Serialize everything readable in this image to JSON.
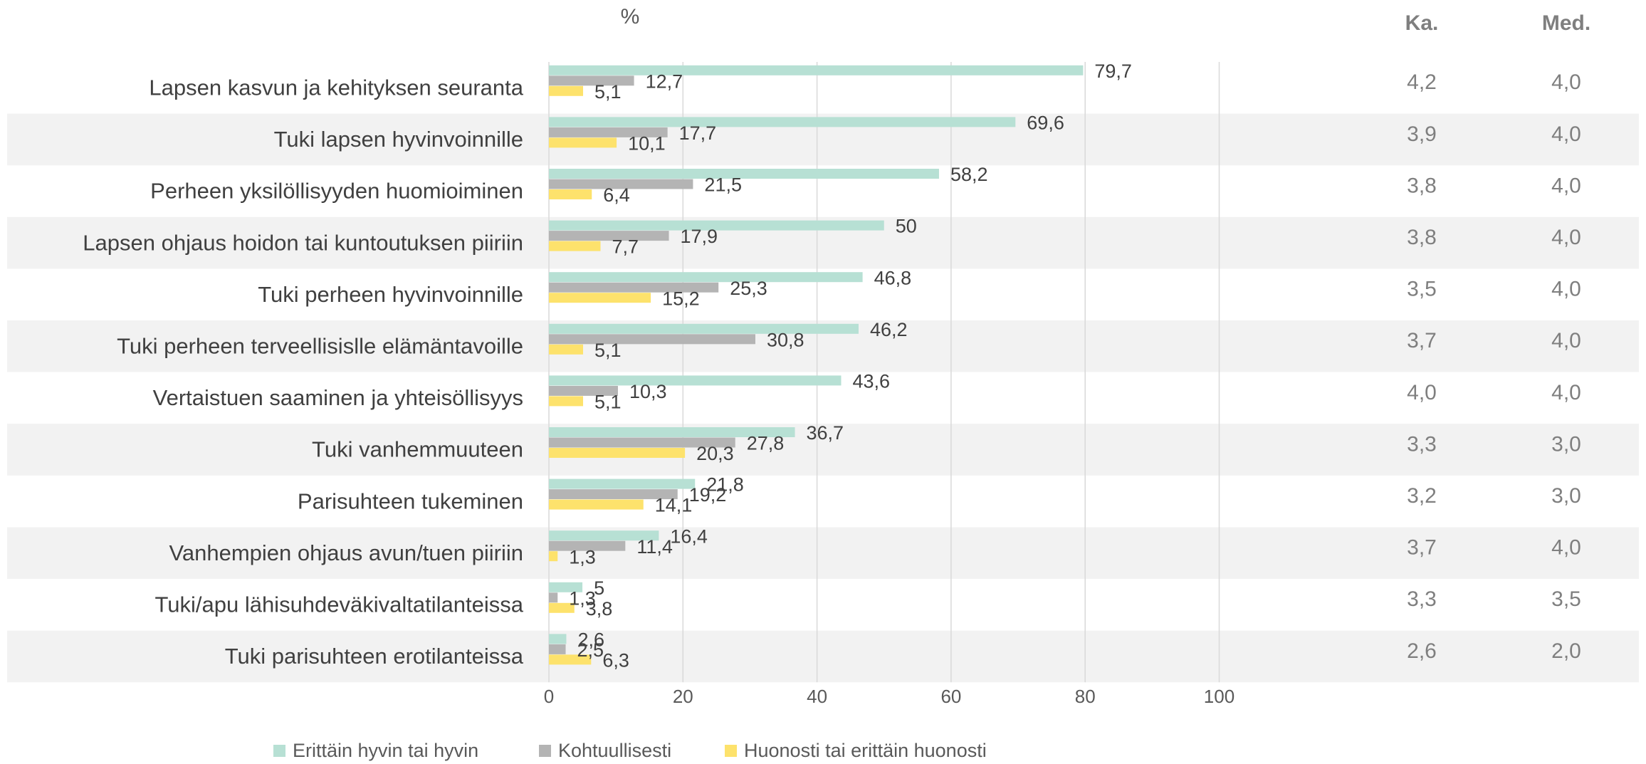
{
  "chart_data": {
    "type": "bar",
    "orientation": "horizontal",
    "unit_label": "%",
    "categories": [
      "Lapsen kasvun ja kehityksen seuranta",
      "Tuki lapsen hyvinvoinnille",
      "Perheen yksilöllisyyden huomioiminen",
      "Lapsen ohjaus hoidon tai kuntoutuksen piiriin",
      "Tuki perheen hyvinvoinnille",
      "Tuki perheen terveellisislle elämäntavoille",
      "Vertaistuen saaminen ja yhteisöllisyys",
      "Tuki vanhemmuuteen",
      "Parisuhteen tukeminen",
      "Vanhempien ohjaus avun/tuen piiriin",
      "Tuki/apu lähisuhdeväkivaltatilanteissa",
      "Tuki parisuhteen erotilanteissa"
    ],
    "series": [
      {
        "name": "Erittäin hyvin tai hyvin",
        "color": "#b7e0d4",
        "values": [
          79.7,
          69.6,
          58.2,
          50,
          46.8,
          46.2,
          43.6,
          36.7,
          21.8,
          16.4,
          5,
          2.6
        ],
        "labels": [
          "79,7",
          "69,6",
          "58,2",
          "50",
          "46,8",
          "46,2",
          "43,6",
          "36,7",
          "21,8",
          "16,4",
          "5",
          "2,6"
        ]
      },
      {
        "name": "Kohtuullisesti",
        "color": "#b4b4b4",
        "values": [
          12.7,
          17.7,
          21.5,
          17.9,
          25.3,
          30.8,
          10.3,
          27.8,
          19.2,
          11.4,
          1.3,
          2.5
        ],
        "labels": [
          "12,7",
          "17,7",
          "21,5",
          "17,9",
          "25,3",
          "30,8",
          "10,3",
          "27,8",
          "19,2",
          "11,4",
          "1,3",
          "2,5"
        ]
      },
      {
        "name": "Huonosti tai erittäin huonosti",
        "color": "#fde26c",
        "values": [
          5.1,
          10.1,
          6.4,
          7.7,
          15.2,
          5.1,
          5.1,
          20.3,
          14.1,
          1.3,
          3.8,
          6.3
        ],
        "labels": [
          "5,1",
          "10,1",
          "6,4",
          "7,7",
          "15,2",
          "5,1",
          "5,1",
          "20,3",
          "14,1",
          "1,3",
          "3,8",
          "6,3"
        ]
      }
    ],
    "xlim": [
      0,
      100
    ],
    "xticks": [
      "0",
      "20",
      "40",
      "60",
      "80",
      "100"
    ],
    "grid": true,
    "legend_position": "bottom-left",
    "band_color": "#f2f2f2",
    "stats": {
      "headers": [
        "Ka.",
        "Med."
      ],
      "ka": [
        "4,2",
        "3,9",
        "3,8",
        "3,8",
        "3,5",
        "3,7",
        "4,0",
        "3,3",
        "3,2",
        "3,7",
        "3,3",
        "2,6"
      ],
      "med": [
        "4,0",
        "4,0",
        "4,0",
        "4,0",
        "4,0",
        "4,0",
        "4,0",
        "3,0",
        "3,0",
        "4,0",
        "3,5",
        "2,0"
      ]
    }
  }
}
